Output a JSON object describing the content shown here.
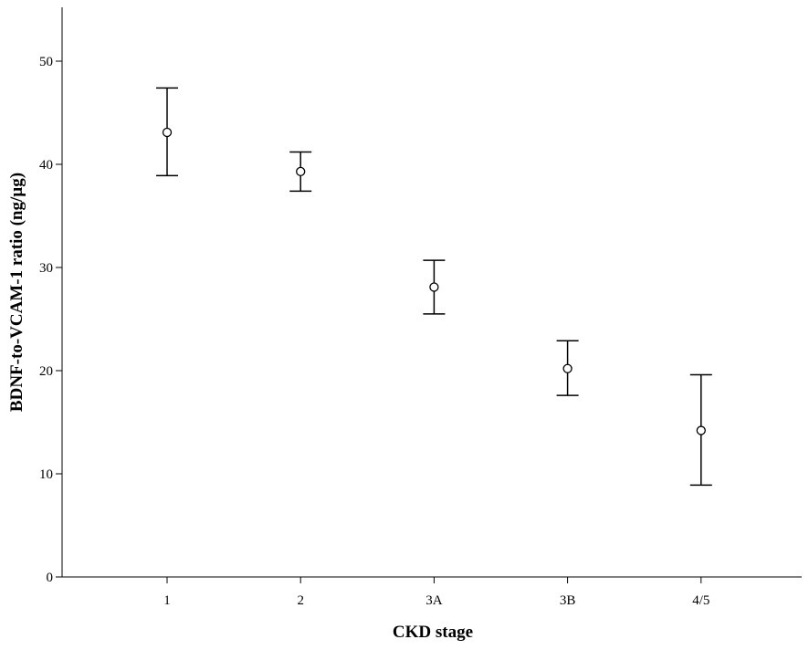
{
  "chart_data": {
    "type": "scatter",
    "subtype": "error-bar",
    "title": "",
    "xlabel": "CKD stage",
    "ylabel": "BDNF-to-VCAM-1 ratio (ng/µg)",
    "categories": [
      "1",
      "2",
      "3A",
      "3B",
      "4/5"
    ],
    "series": [
      {
        "values": [
          43.1,
          39.3,
          28.1,
          20.2,
          14.2
        ],
        "error_low": [
          38.9,
          37.4,
          25.5,
          17.6,
          8.9
        ],
        "error_high": [
          47.4,
          41.2,
          30.7,
          22.9,
          19.6
        ]
      }
    ],
    "ylim": [
      0,
      55
    ],
    "yticks": [
      "0",
      "10",
      "20",
      "30",
      "40",
      "50"
    ],
    "grid": false,
    "legend": "none",
    "colors": {
      "mark": "#000000",
      "axis": "#000000",
      "background": "#ffffff"
    }
  }
}
